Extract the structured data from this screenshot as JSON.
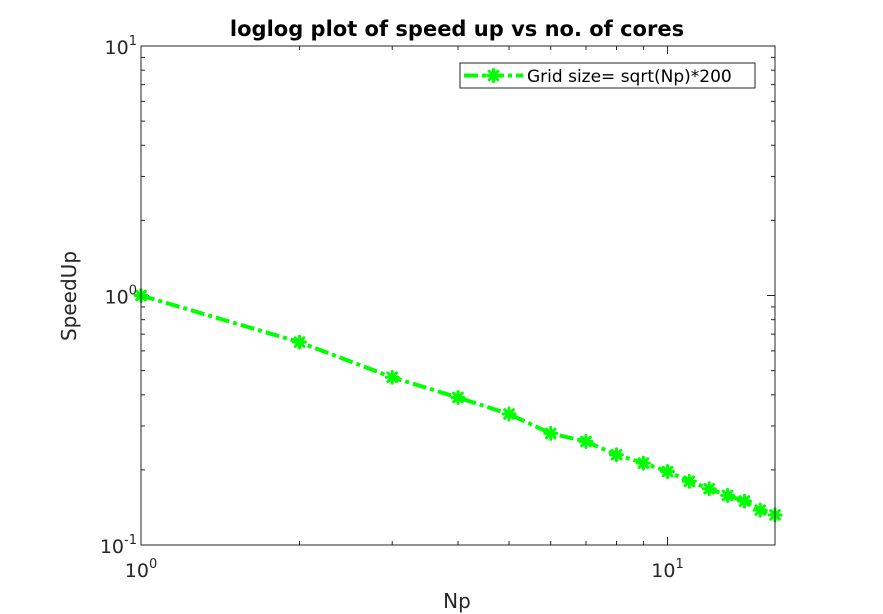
{
  "chart_data": {
    "type": "line",
    "title": "loglog plot of speed up vs no. of cores",
    "xlabel": "Np",
    "ylabel": "SpeedUp",
    "xscale": "log",
    "yscale": "log",
    "xlim": [
      1,
      16
    ],
    "ylim": [
      0.1,
      10
    ],
    "xticks": [
      {
        "value": 1,
        "mantissa": "10",
        "exponent": "0"
      },
      {
        "value": 10,
        "mantissa": "10",
        "exponent": "1"
      }
    ],
    "yticks": [
      {
        "value": 0.1,
        "mantissa": "10",
        "exponent": "-1"
      },
      {
        "value": 1,
        "mantissa": "10",
        "exponent": "0"
      },
      {
        "value": 10,
        "mantissa": "10",
        "exponent": "1"
      }
    ],
    "grid": false,
    "box": true,
    "legend_position": "top-right",
    "series": [
      {
        "name": "Grid size= sqrt(Np)*200",
        "color": "#00ff00",
        "line_style": "dash-dot",
        "marker": "asterisk",
        "x": [
          1,
          2,
          3,
          4,
          5,
          6,
          7,
          8,
          9,
          10,
          11,
          12,
          13,
          14,
          15,
          16
        ],
        "y": [
          1.0,
          0.65,
          0.47,
          0.39,
          0.335,
          0.28,
          0.26,
          0.23,
          0.213,
          0.197,
          0.18,
          0.168,
          0.158,
          0.15,
          0.138,
          0.132
        ]
      }
    ]
  }
}
